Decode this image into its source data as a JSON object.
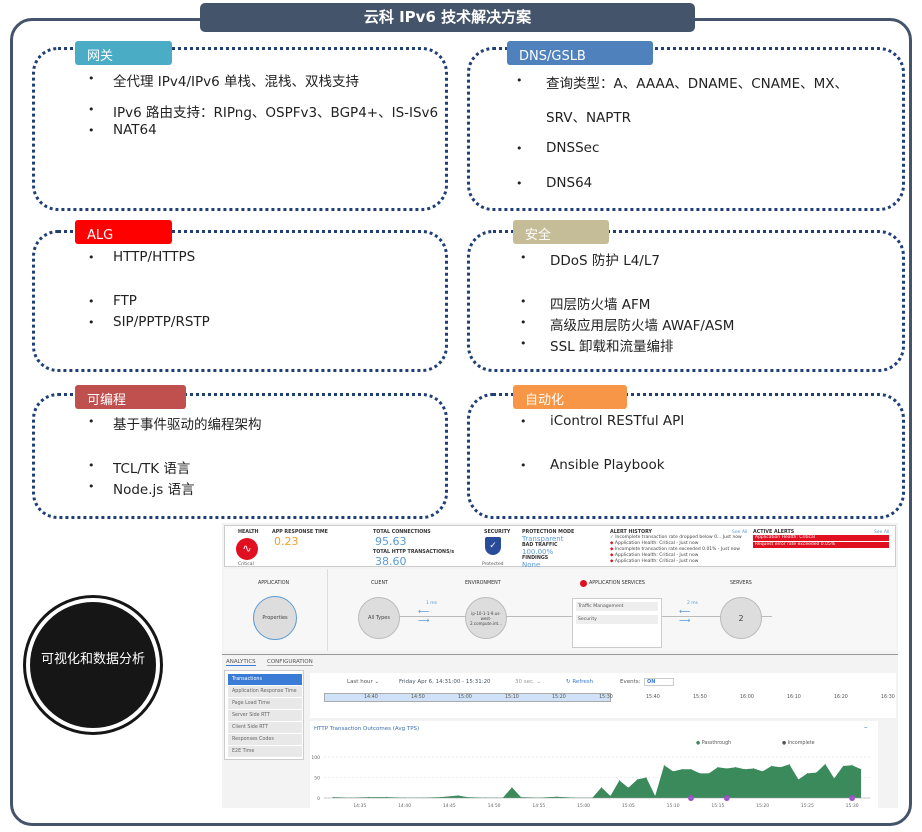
{
  "title": "云科 IPv6 技术解决方案",
  "sections": [
    {
      "label": "网关",
      "color": "#4bacc6",
      "items": [
        "全代理 IPv4/IPv6 单栈、混栈、双栈支持",
        "IPv6 路由支持：RIPng、OSPFv3、BGP4+、IS-ISv6",
        "NAT64"
      ]
    },
    {
      "label": "DNS/GSLB",
      "color": "#4f81bd",
      "items": [
        "查询类型：A、AAAA、DNAME、CNAME、MX、",
        "SRV、NAPTR",
        "DNSSec",
        "DNS64"
      ]
    },
    {
      "label": "ALG",
      "color": "#ff0000",
      "items": [
        "HTTP/HTTPS",
        "FTP",
        "SIP/PPTP/RSTP"
      ]
    },
    {
      "label": "安全",
      "color": "#c4bd97",
      "items": [
        "DDoS 防护 L4/L7",
        "四层防火墙 AFM",
        "高级应用层防火墙 AWAF/ASM",
        "SSL 卸载和流量编排"
      ]
    },
    {
      "label": "可编程",
      "color": "#c0504d",
      "items": [
        "基于事件驱动的编程架构",
        "TCL/TK 语言",
        "Node.js 语言"
      ]
    },
    {
      "label": "自动化",
      "color": "#f79646",
      "items": [
        "iControl RESTful API",
        "Ansible Playbook"
      ]
    }
  ],
  "circle_label": "可视化和数据分析",
  "dashboard": {
    "health": {
      "label": "HEALTH",
      "status": "Critical"
    },
    "app_response": {
      "label": "APP RESPONSE TIME",
      "value": "0.23"
    },
    "connections": {
      "label": "TOTAL CONNECTIONS",
      "value": "95.63",
      "http_label": "TOTAL HTTP TRANSACTIONS/s",
      "http_value": "38.60"
    },
    "security": {
      "label": "SECURITY",
      "status": "Protected"
    },
    "protection": {
      "mode_label": "PROTECTION MODE",
      "mode": "Transparent",
      "bad_label": "BAD TRAFFIC",
      "bad": "100.00%",
      "findings_label": "FINDINGS",
      "findings": "None"
    },
    "alert_history": {
      "label": "ALERT HISTORY",
      "see_all": "See All",
      "items": [
        "Incomplete transaction rate dropped below 0... Just now",
        "Application Health: Critical - Just now",
        "Incomplete transaction rate exceeded 0.01% - Just now",
        "Application Health: Critical - Just now",
        "Application Health: Critical - Just now"
      ]
    },
    "active_alerts": {
      "label": "ACTIVE ALERTS",
      "see_all": "See All",
      "items": [
        "Application Health: Critical",
        "Request error rate exceeded 0.05%"
      ]
    },
    "flow": {
      "application": "APPLICATION",
      "properties": "Properties",
      "client": "CLIENT",
      "client_node": "All Types",
      "environment": "ENVIRONMENT",
      "env_node": "ip-10-1-1-9.us-west-2.compute.int...",
      "app_services": "APPLICATION SERVICES",
      "services": [
        "Traffic Management",
        "Security"
      ],
      "servers": "SERVERS",
      "server_count": "2",
      "latency_client": "1 ms",
      "latency_server": "2 ms"
    },
    "tabs": [
      "ANALYTICS",
      "CONFIGURATION"
    ],
    "menu": [
      "Transactions",
      "Application Response Time",
      "Page Load Time",
      "Server Side RTT",
      "Client Side RTT",
      "Responses Codes",
      "E2E Time"
    ],
    "controls": {
      "range": "Last hour ⌄",
      "date": "Friday Apr 6, 14:31:00 - 15:31:20",
      "interval": "30 sec. ⌄",
      "refresh": "↻ Refresh",
      "events_label": "Events:",
      "events_value": "ON"
    },
    "timeline_ticks": [
      "14:40",
      "14:50",
      "15:00",
      "15:10",
      "15:20",
      "15:30",
      "15:40",
      "15:50",
      "16:00",
      "16:10",
      "16:20",
      "16:30"
    ]
  },
  "chart_data": {
    "type": "area",
    "title": "HTTP Transaction Outcomes (Avg TPS)",
    "legend": [
      "Passthrough",
      "Incomplete"
    ],
    "colors": {
      "Passthrough": "#3a8a5c",
      "Incomplete": "#111111"
    },
    "ylim": [
      0,
      100
    ],
    "yticks": [
      "0",
      "50",
      "100"
    ],
    "xticks": [
      "14:35",
      "14:40",
      "14:45",
      "14:50",
      "14:55",
      "15:00",
      "15:05",
      "15:10",
      "15:15",
      "15:20",
      "15:25",
      "15:30"
    ],
    "x": [
      "14:32",
      "14:34",
      "14:36",
      "14:38",
      "14:40",
      "14:42",
      "14:44",
      "14:46",
      "14:47",
      "14:49",
      "14:51",
      "14:52",
      "14:53",
      "14:55",
      "14:57",
      "14:59",
      "15:01",
      "15:02",
      "15:03",
      "15:04",
      "15:05",
      "15:06",
      "15:07",
      "15:08",
      "15:09",
      "15:10",
      "15:11",
      "15:12",
      "15:13",
      "15:14",
      "15:15",
      "15:16",
      "15:17",
      "15:18",
      "15:19",
      "15:20",
      "15:21",
      "15:22",
      "15:23",
      "15:24",
      "15:25",
      "15:26",
      "15:27",
      "15:28",
      "15:29",
      "15:30",
      "15:31"
    ],
    "series": [
      {
        "name": "Passthrough",
        "values": [
          2,
          1,
          2,
          2,
          1,
          1,
          2,
          6,
          2,
          1,
          1,
          26,
          2,
          1,
          3,
          1,
          1,
          26,
          5,
          43,
          25,
          45,
          50,
          5,
          80,
          65,
          70,
          70,
          60,
          60,
          75,
          72,
          75,
          70,
          72,
          65,
          78,
          75,
          82,
          45,
          60,
          62,
          83,
          48,
          78,
          80,
          70
        ]
      }
    ],
    "event_markers": [
      "15:12",
      "15:16",
      "15:30"
    ]
  }
}
